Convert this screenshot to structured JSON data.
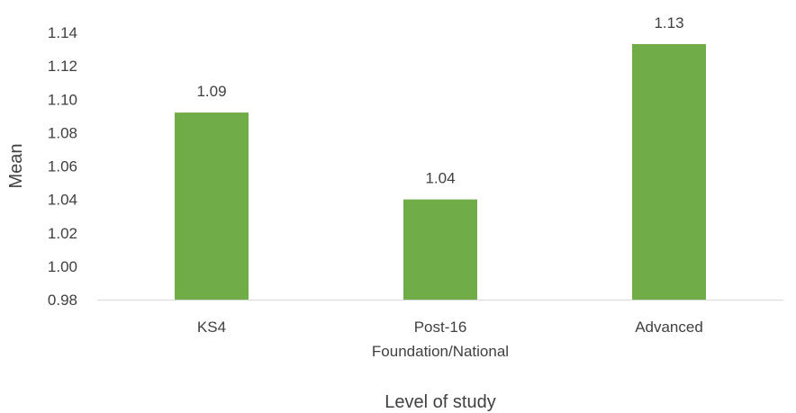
{
  "chart_data": {
    "type": "bar",
    "categories": [
      [
        "KS4"
      ],
      [
        "Post-16",
        "Foundation/National"
      ],
      [
        "Advanced"
      ]
    ],
    "values": [
      1.092,
      1.04,
      1.133
    ],
    "data_labels": [
      "1.09",
      "1.04",
      "1.13"
    ],
    "title": "",
    "xlabel": "Level of study",
    "ylabel": "Mean",
    "ylim": [
      0.98,
      1.14
    ],
    "yticks": [
      0.98,
      1.0,
      1.02,
      1.04,
      1.06,
      1.08,
      1.1,
      1.12,
      1.14
    ],
    "ytick_labels": [
      "0.98",
      "1.00",
      "1.02",
      "1.04",
      "1.06",
      "1.08",
      "1.10",
      "1.12",
      "1.14"
    ],
    "grid": false,
    "legend": "none",
    "bar_color": "#70AD47",
    "axis_color": "#D9D9D9",
    "text_color": "#404040"
  }
}
